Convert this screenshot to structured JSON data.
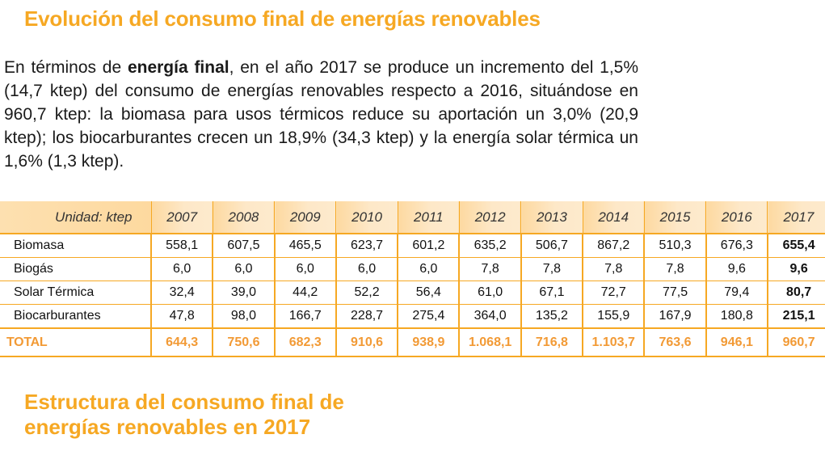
{
  "title": "Evolución del consumo final de energías renovables",
  "intro": {
    "before_bold": "En términos de ",
    "bold": "energía final",
    "after_bold": ", en el año 2017 se produce un incremento del 1,5% (14,7 ktep) del consumo de energías renovables respecto a 2016, situándose en 960,7 ktep: la biomasa para usos térmicos reduce su aportación un 3,0% (20,9 ktep); los biocarburantes crecen un 18,9% (34,3 ktep) y la energía solar térmica un 1,6% (1,3 ktep)."
  },
  "table": {
    "unit_label": "Unidad: ktep",
    "years": [
      "2007",
      "2008",
      "2009",
      "2010",
      "2011",
      "2012",
      "2013",
      "2014",
      "2015",
      "2016",
      "2017"
    ],
    "rows": [
      {
        "label": "Biomasa",
        "values": [
          "558,1",
          "607,5",
          "465,5",
          "623,7",
          "601,2",
          "635,2",
          "506,7",
          "867,2",
          "510,3",
          "676,3",
          "655,4"
        ]
      },
      {
        "label": "Biogás",
        "values": [
          "6,0",
          "6,0",
          "6,0",
          "6,0",
          "6,0",
          "7,8",
          "7,8",
          "7,8",
          "7,8",
          "9,6",
          "9,6"
        ]
      },
      {
        "label": "Solar Térmica",
        "values": [
          "32,4",
          "39,0",
          "44,2",
          "52,2",
          "56,4",
          "61,0",
          "67,1",
          "72,7",
          "77,5",
          "79,4",
          "80,7"
        ]
      },
      {
        "label": "Biocarburantes",
        "values": [
          "47,8",
          "98,0",
          "166,7",
          "228,7",
          "275,4",
          "364,0",
          "135,2",
          "155,9",
          "167,9",
          "180,8",
          "215,1"
        ]
      }
    ],
    "total": {
      "label": "TOTAL",
      "values": [
        "644,3",
        "750,6",
        "682,3",
        "910,6",
        "938,9",
        "1.068,1",
        "716,8",
        "1.103,7",
        "763,6",
        "946,1",
        "960,7"
      ]
    }
  },
  "subtitle": "Estructura del consumo final de energías renovables en 2017",
  "colors": {
    "accent": "#f6a823",
    "total_text": "#f29a35",
    "header_bg": "#fde2b5"
  }
}
